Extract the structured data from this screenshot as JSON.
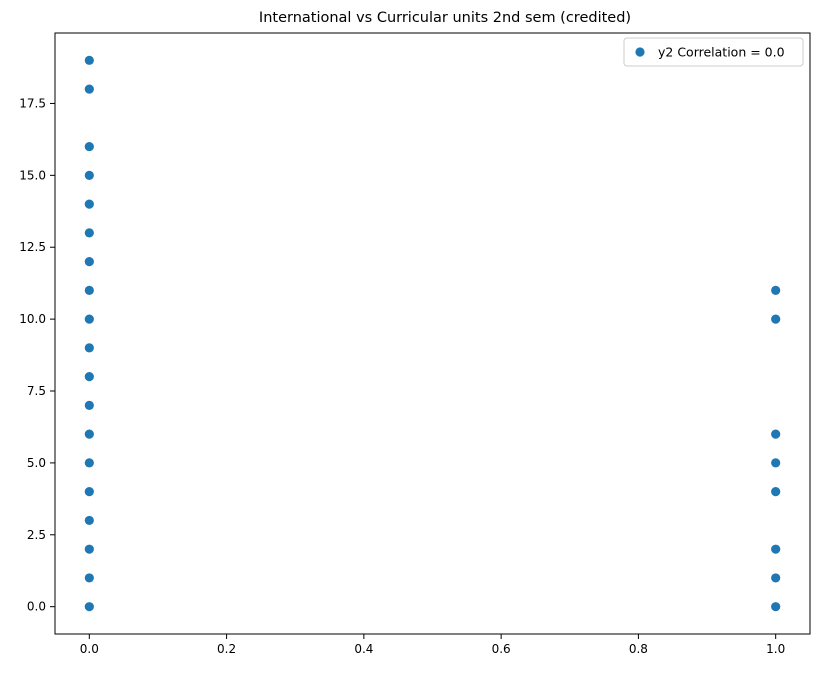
{
  "chart_data": {
    "type": "scatter",
    "title": "International vs Curricular units 2nd sem (credited)",
    "xlabel": "",
    "ylabel": "",
    "xlim": [
      -0.05,
      1.05
    ],
    "ylim": [
      -0.95,
      19.95
    ],
    "x_ticks": [
      0.0,
      0.2,
      0.4,
      0.6,
      0.8,
      1.0
    ],
    "x_tick_labels": [
      "0.0",
      "0.2",
      "0.4",
      "0.6",
      "0.8",
      "1.0"
    ],
    "y_ticks": [
      0.0,
      2.5,
      5.0,
      7.5,
      10.0,
      12.5,
      15.0,
      17.5
    ],
    "y_tick_labels": [
      "0.0",
      "2.5",
      "5.0",
      "7.5",
      "10.0",
      "12.5",
      "15.0",
      "17.5"
    ],
    "grid": false,
    "legend": {
      "placement": "top-right",
      "entries": [
        "y2 Correlation = 0.0"
      ]
    },
    "colors": {
      "series": "#1f77b4",
      "axes": "#000000"
    },
    "series": [
      {
        "name": "y2 Correlation = 0.0",
        "points": [
          {
            "x": 0,
            "y": 0
          },
          {
            "x": 0,
            "y": 1
          },
          {
            "x": 0,
            "y": 2
          },
          {
            "x": 0,
            "y": 3
          },
          {
            "x": 0,
            "y": 4
          },
          {
            "x": 0,
            "y": 5
          },
          {
            "x": 0,
            "y": 6
          },
          {
            "x": 0,
            "y": 7
          },
          {
            "x": 0,
            "y": 8
          },
          {
            "x": 0,
            "y": 9
          },
          {
            "x": 0,
            "y": 10
          },
          {
            "x": 0,
            "y": 11
          },
          {
            "x": 0,
            "y": 12
          },
          {
            "x": 0,
            "y": 13
          },
          {
            "x": 0,
            "y": 14
          },
          {
            "x": 0,
            "y": 15
          },
          {
            "x": 0,
            "y": 16
          },
          {
            "x": 0,
            "y": 18
          },
          {
            "x": 0,
            "y": 19
          },
          {
            "x": 1,
            "y": 0
          },
          {
            "x": 1,
            "y": 1
          },
          {
            "x": 1,
            "y": 2
          },
          {
            "x": 1,
            "y": 4
          },
          {
            "x": 1,
            "y": 5
          },
          {
            "x": 1,
            "y": 6
          },
          {
            "x": 1,
            "y": 10
          },
          {
            "x": 1,
            "y": 11
          }
        ]
      }
    ]
  }
}
